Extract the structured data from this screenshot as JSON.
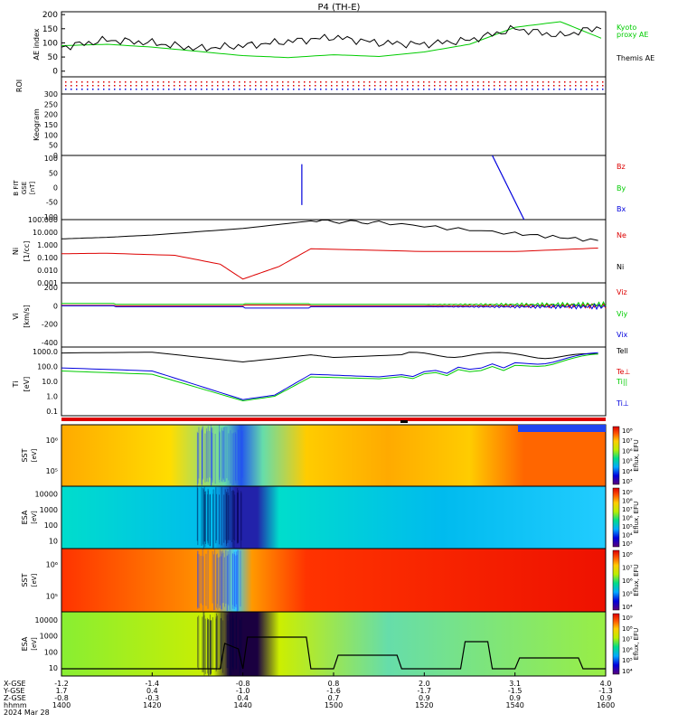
{
  "title": "P4 (TH-E)",
  "colors": {
    "black": "#000000",
    "red": "#dd0000",
    "green": "#00cc00",
    "blue": "#0000dd",
    "axis": "#000000"
  },
  "x_ticks": [
    "1400",
    "1420",
    "1440",
    "1500",
    "1520",
    "1540",
    "1600"
  ],
  "x_axis_rows": [
    {
      "label": "X-GSE",
      "values": [
        "-1.2",
        "-1.4",
        "-0.8",
        "0.8",
        "2.0",
        "3.1",
        "4.0"
      ]
    },
    {
      "label": "Y-GSE",
      "values": [
        "1.7",
        "0.4",
        "-1.0",
        "-1.6",
        "-1.7",
        "-1.5",
        "-1.3"
      ]
    },
    {
      "label": "Z-GSE",
      "values": [
        "-0.8",
        "-0.3",
        "0.4",
        "0.7",
        "0.9",
        "0.9",
        "0.9"
      ]
    },
    {
      "label": "hhmm",
      "values": [
        "1400",
        "1420",
        "1440",
        "1500",
        "1520",
        "1540",
        "1600"
      ]
    },
    {
      "label": "2024 Mar 28",
      "values": []
    }
  ],
  "chart_data": [
    {
      "type": "line",
      "panel": "AE index",
      "ylabel": "AE index",
      "yticks": [
        "200",
        "150",
        "100",
        "50",
        "0"
      ],
      "ylim": [
        -20,
        210
      ],
      "series": [
        {
          "name": "Kyoto proxy AE",
          "color": "#00cc00",
          "x": [
            0,
            10,
            20,
            30,
            40,
            50,
            60,
            70,
            80,
            90,
            100,
            110,
            120
          ],
          "values": [
            90,
            95,
            85,
            70,
            55,
            48,
            58,
            52,
            68,
            95,
            155,
            175,
            110
          ]
        },
        {
          "name": "Themis AE",
          "color": "#000000",
          "x": [
            0,
            10,
            20,
            30,
            40,
            50,
            60,
            70,
            80,
            90,
            100,
            110,
            120
          ],
          "values": [
            85,
            110,
            100,
            80,
            90,
            105,
            120,
            100,
            95,
            110,
            150,
            125,
            160
          ]
        }
      ],
      "legend_labels": [
        "Kyoto",
        "proxy AE",
        "Themis AE"
      ]
    },
    {
      "type": "line",
      "panel": "ROI",
      "ylabel": "ROI",
      "yticks": []
    },
    {
      "type": "heatmap",
      "panel": "Keogram",
      "ylabel": "Keogram",
      "yticks": [
        "300",
        "250",
        "200",
        "150",
        "100",
        "50",
        "0"
      ]
    },
    {
      "type": "line",
      "panel": "B FIT",
      "ylabel": "B FIT GSE [nT]",
      "yticks": [
        "100",
        "50",
        "0",
        "-50",
        "-100"
      ],
      "ylim": [
        -110,
        110
      ],
      "legend_labels": [
        "Bz",
        "By",
        "Bx"
      ],
      "series": [
        {
          "name": "Bx",
          "color": "#0000dd",
          "x": [
            53,
            53,
            95,
            102
          ],
          "values": [
            80,
            -60,
            110,
            -110
          ]
        }
      ]
    },
    {
      "type": "line",
      "panel": "Ni",
      "ylabel": "Ni [1/cc]",
      "yticks": [
        "100.000",
        "10.000",
        "1.000",
        "0.100",
        "0.010",
        "0.001"
      ],
      "log": true,
      "legend_labels": [
        "Ne",
        "Ni"
      ],
      "series": [
        {
          "name": "Ne",
          "color": "#000000",
          "x": [
            0,
            10,
            20,
            40,
            55,
            70,
            100,
            120
          ],
          "values": [
            3,
            4,
            6,
            20,
            80,
            60,
            8,
            2
          ]
        },
        {
          "name": "Ni",
          "color": "#dd0000",
          "x": [
            0,
            10,
            25,
            35,
            40,
            48,
            55,
            80,
            100,
            120
          ],
          "values": [
            0.2,
            0.22,
            0.15,
            0.03,
            0.002,
            0.02,
            0.5,
            0.3,
            0.3,
            0.6
          ]
        }
      ]
    },
    {
      "type": "line",
      "panel": "Vi",
      "ylabel": "Vi [km/s]",
      "yticks": [
        "200",
        "0",
        "-200",
        "-400"
      ],
      "ylim": [
        -450,
        250
      ],
      "legend_labels": [
        "Viz",
        "Viy",
        "Vix"
      ]
    },
    {
      "type": "line",
      "panel": "Ti",
      "ylabel": "Ti [eV]",
      "yticks": [
        "1000.0",
        "100.0",
        "10.0",
        "1.0",
        "0.1"
      ],
      "log": true,
      "legend_labels": [
        "Tell",
        "Te⊥",
        "Ti||",
        "Ti⊥"
      ],
      "series": [
        {
          "name": "Tell",
          "color": "#000000",
          "x": [
            0,
            20,
            40,
            55,
            60,
            80,
            100,
            120
          ],
          "values": [
            800,
            900,
            200,
            600,
            400,
            700,
            600,
            500
          ]
        },
        {
          "name": "Ti||",
          "color": "#00cc00",
          "x": [
            0,
            20,
            40,
            47,
            55,
            70,
            100,
            120
          ],
          "values": [
            50,
            30,
            0.5,
            1,
            20,
            15,
            100,
            600
          ]
        },
        {
          "name": "Ti⊥",
          "color": "#0000dd",
          "x": [
            0,
            20,
            40,
            47,
            55,
            70,
            100,
            120
          ],
          "values": [
            80,
            50,
            0.6,
            1.2,
            30,
            20,
            150,
            700
          ]
        }
      ]
    },
    {
      "type": "heatmap",
      "panel": "SST",
      "ylabel": "SST [eV]",
      "yticks": [
        "10⁶",
        "10⁵"
      ],
      "colorbar_label": "Eflux, EFU",
      "colorbar_ticks": [
        "10⁸",
        "10⁷",
        "10⁶",
        "10⁵",
        "10⁴",
        "10³"
      ]
    },
    {
      "type": "heatmap",
      "panel": "ESA",
      "ylabel": "ESA [eV]",
      "yticks": [
        "10000",
        "1000",
        "100",
        "10"
      ],
      "colorbar_label": "Eflux, EFU",
      "colorbar_ticks": [
        "10⁹",
        "10⁸",
        "10⁷",
        "10⁶",
        "10⁵",
        "10⁴",
        "10³"
      ]
    },
    {
      "type": "heatmap",
      "panel": "SST",
      "ylabel": "SST [eV]",
      "yticks": [
        "10⁶",
        "10⁵"
      ],
      "colorbar_label": "Eflux, EFU",
      "colorbar_ticks": [
        "10⁸",
        "10⁷",
        "10⁶",
        "10⁵",
        "10⁴"
      ]
    },
    {
      "type": "heatmap",
      "panel": "ESA",
      "ylabel": "ESA [eV]",
      "yticks": [
        "10000",
        "1000",
        "100",
        "10"
      ],
      "colorbar_label": "Eflux, EFU",
      "colorbar_ticks": [
        "10⁹",
        "10⁸",
        "10⁷",
        "10⁶",
        "10⁵",
        "10⁴"
      ]
    }
  ]
}
